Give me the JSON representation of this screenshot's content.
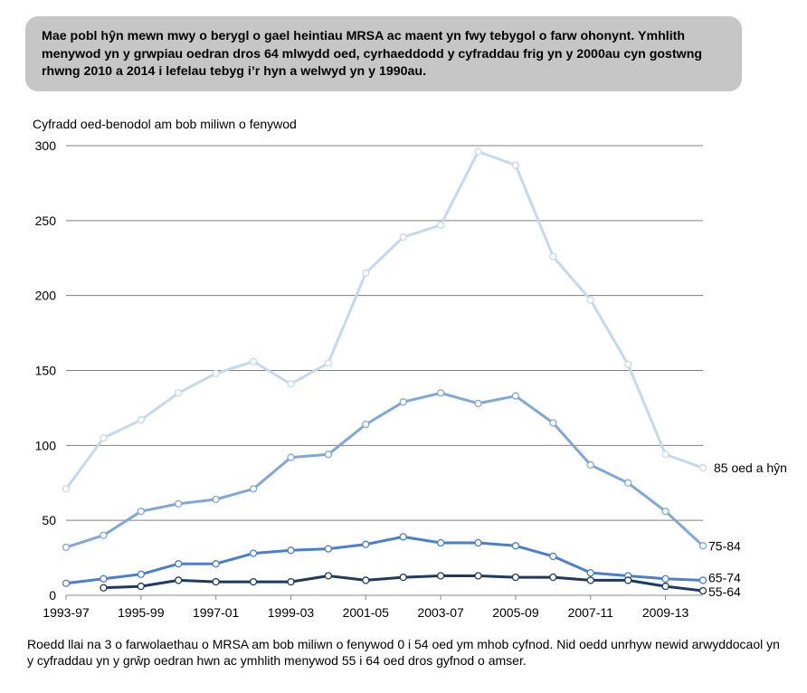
{
  "header": {
    "text": "Mae pobl hŷn mewn mwy o berygl o gael heintiau MRSA ac maent yn fwy tebygol o farw ohonynt. Ymhlith menywod yn y grwpiau oedran dros 64 mlwydd oed, cyrhaeddodd y cyfraddau frig yn y 2000au cyn gostwng rhwng 2010 a 2014 i lefelau tebyg i’r hyn a welwyd yn y 1990au."
  },
  "footer": {
    "text": "Roedd llai na 3 o farwolaethau o MRSA am bob miliwn o fenywod 0 i 54 oed ym mhob cyfnod. Nid oedd unrhyw newid arwyddocaol yn y cyfraddau yn y grŵp oedran hwn ac ymhlith menywod 55 i 64 oed dros gyfnod o amser."
  },
  "chart_data": {
    "type": "line",
    "title": "",
    "xlabel": "",
    "ylabel": "Cyfradd oed-benodol am bob miliwn o fenywod",
    "ylim": [
      0,
      300
    ],
    "yticks": [
      0,
      50,
      100,
      150,
      200,
      250,
      300
    ],
    "grid": true,
    "x": [
      "1993-97",
      "1994-98",
      "1995-99",
      "1996-00",
      "1997-01",
      "1998-02",
      "1999-03",
      "2000-04",
      "2001-05",
      "2002-06",
      "2003-07",
      "2004-08",
      "2005-09",
      "2006-10",
      "2007-11",
      "2008-12",
      "2009-13",
      "2010-14"
    ],
    "xtick_labels": [
      "1993-97",
      "1995-99",
      "1997-01",
      "1999-03",
      "2001-05",
      "2003-07",
      "2005-09",
      "2007-11",
      "2009-13"
    ],
    "series": [
      {
        "name": "85 oed a hŷn",
        "color": "#c5d9ee",
        "values": [
          71,
          105,
          117,
          135,
          148,
          156,
          141,
          155,
          215,
          239,
          247,
          296,
          287,
          226,
          197,
          154,
          94,
          85
        ]
      },
      {
        "name": "75-84",
        "color": "#7fa8d9",
        "values": [
          32,
          40,
          56,
          61,
          64,
          71,
          92,
          94,
          114,
          129,
          135,
          128,
          133,
          115,
          87,
          75,
          56,
          33
        ]
      },
      {
        "name": "65-74",
        "color": "#4a7fcc",
        "values": [
          8,
          11,
          14,
          21,
          21,
          28,
          30,
          31,
          34,
          39,
          35,
          35,
          33,
          26,
          15,
          13,
          11,
          10
        ]
      },
      {
        "name": "55-64",
        "color": "#1f3a5f",
        "values": [
          null,
          5,
          6,
          10,
          9,
          9,
          9,
          13,
          10,
          12,
          13,
          13,
          12,
          12,
          10,
          10,
          6,
          3
        ]
      }
    ]
  }
}
